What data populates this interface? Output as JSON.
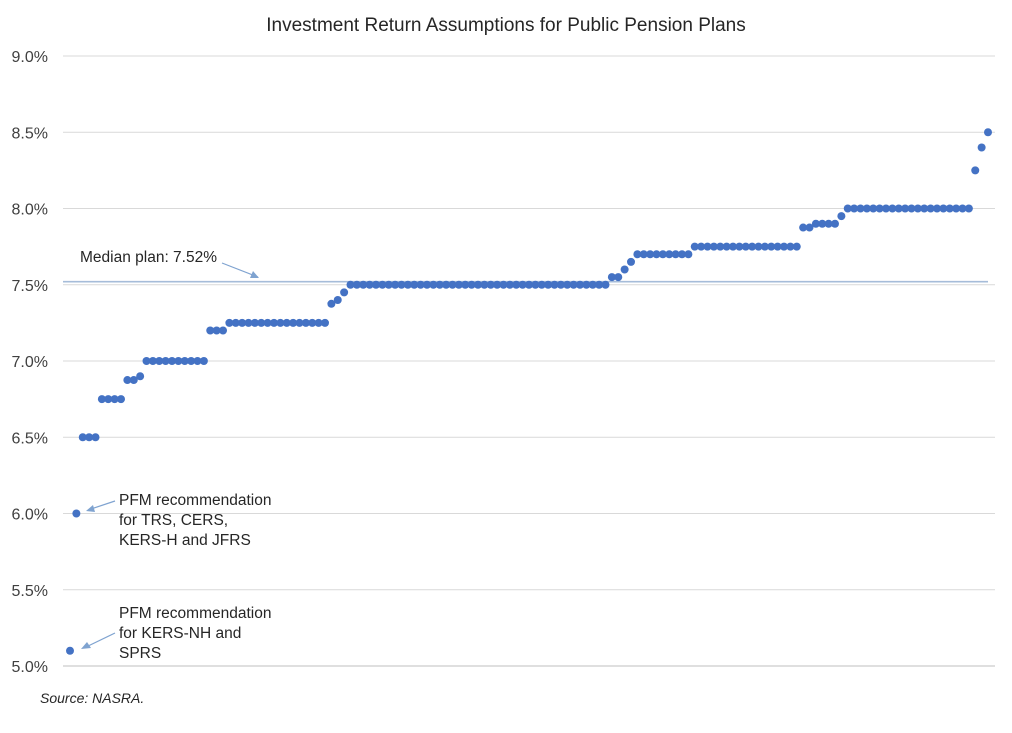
{
  "chart_data": {
    "type": "scatter",
    "title": "Investment Return Assumptions for Public Pension Plans",
    "xlabel": "",
    "ylabel": "",
    "ylim": [
      5.0,
      9.0
    ],
    "yticks": [
      "5.0%",
      "5.5%",
      "6.0%",
      "6.5%",
      "7.0%",
      "7.5%",
      "8.0%",
      "8.5%",
      "9.0%"
    ],
    "grid": true,
    "legend": "none",
    "colors": {
      "points": "#4472C4",
      "grid": "#D9D9D9",
      "median_line": "#A6BCD9",
      "arrow": "#7FA3D0"
    },
    "series": [
      {
        "values": [
          5.1,
          6.0,
          6.5,
          6.5,
          6.5,
          6.75,
          6.75,
          6.75,
          6.75,
          6.875,
          6.875,
          6.9,
          7.0,
          7.0,
          7.0,
          7.0,
          7.0,
          7.0,
          7.0,
          7.0,
          7.0,
          7.0,
          7.2,
          7.2,
          7.2,
          7.25,
          7.25,
          7.25,
          7.25,
          7.25,
          7.25,
          7.25,
          7.25,
          7.25,
          7.25,
          7.25,
          7.25,
          7.25,
          7.25,
          7.25,
          7.25,
          7.375,
          7.4,
          7.45,
          7.5,
          7.5,
          7.5,
          7.5,
          7.5,
          7.5,
          7.5,
          7.5,
          7.5,
          7.5,
          7.5,
          7.5,
          7.5,
          7.5,
          7.5,
          7.5,
          7.5,
          7.5,
          7.5,
          7.5,
          7.5,
          7.5,
          7.5,
          7.5,
          7.5,
          7.5,
          7.5,
          7.5,
          7.5,
          7.5,
          7.5,
          7.5,
          7.5,
          7.5,
          7.5,
          7.5,
          7.5,
          7.5,
          7.5,
          7.5,
          7.5,
          7.55,
          7.55,
          7.6,
          7.65,
          7.7,
          7.7,
          7.7,
          7.7,
          7.7,
          7.7,
          7.7,
          7.7,
          7.7,
          7.75,
          7.75,
          7.75,
          7.75,
          7.75,
          7.75,
          7.75,
          7.75,
          7.75,
          7.75,
          7.75,
          7.75,
          7.75,
          7.75,
          7.75,
          7.75,
          7.75,
          7.875,
          7.875,
          7.9,
          7.9,
          7.9,
          7.9,
          7.95,
          8.0,
          8.0,
          8.0,
          8.0,
          8.0,
          8.0,
          8.0,
          8.0,
          8.0,
          8.0,
          8.0,
          8.0,
          8.0,
          8.0,
          8.0,
          8.0,
          8.0,
          8.0,
          8.0,
          8.0,
          8.25,
          8.4,
          8.5
        ]
      }
    ],
    "median": {
      "value": 7.52,
      "label": "Median plan: 7.52%"
    },
    "annotations": [
      {
        "lines": [
          "PFM recommendation",
          "for TRS, CERS,",
          "KERS-H and JFRS"
        ],
        "point_value": 6.0
      },
      {
        "lines": [
          "PFM recommendation",
          "for KERS-NH and",
          "SPRS"
        ],
        "point_value": 5.1
      }
    ],
    "source": "Source: NASRA."
  }
}
